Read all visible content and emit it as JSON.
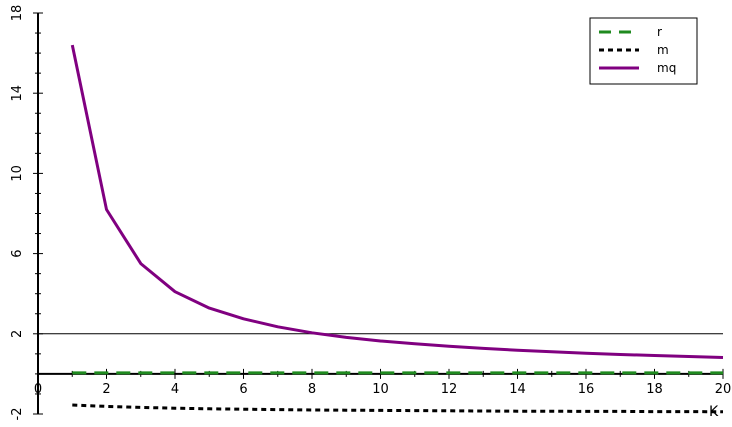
{
  "chart_data": {
    "type": "line",
    "xlabel": "K",
    "ylabel": "",
    "xlim": [
      0,
      20
    ],
    "ylim": [
      -2,
      18
    ],
    "x_ticks": [
      "0",
      "2",
      "4",
      "6",
      "8",
      "10",
      "12",
      "14",
      "16",
      "18",
      "20"
    ],
    "y_ticks": [
      "-2",
      "2",
      "6",
      "10",
      "14",
      "18"
    ],
    "reference_line_y": 2,
    "legend_position": "top-right",
    "series": [
      {
        "name": "r",
        "style": "dashed",
        "color": "#1f8a1f",
        "x": [
          1,
          2,
          3,
          4,
          5,
          6,
          7,
          8,
          9,
          10,
          11,
          12,
          13,
          14,
          15,
          16,
          17,
          18,
          19,
          20
        ],
        "y": [
          0.05,
          0.05,
          0.05,
          0.05,
          0.05,
          0.05,
          0.05,
          0.05,
          0.05,
          0.05,
          0.05,
          0.05,
          0.05,
          0.05,
          0.05,
          0.05,
          0.05,
          0.05,
          0.05,
          0.05
        ]
      },
      {
        "name": "m",
        "style": "dotted",
        "color": "#000000",
        "x": [
          1,
          2,
          3,
          4,
          5,
          6,
          7,
          8,
          9,
          10,
          11,
          12,
          13,
          14,
          15,
          16,
          17,
          18,
          19,
          20
        ],
        "y": [
          -1.55,
          -1.62,
          -1.67,
          -1.71,
          -1.74,
          -1.76,
          -1.78,
          -1.8,
          -1.81,
          -1.82,
          -1.83,
          -1.84,
          -1.85,
          -1.86,
          -1.86,
          -1.87,
          -1.87,
          -1.88,
          -1.88,
          -1.89
        ]
      },
      {
        "name": "mq",
        "style": "solid",
        "color": "#800080",
        "x": [
          1,
          2,
          3,
          4,
          5,
          6,
          7,
          8,
          9,
          10,
          11,
          12,
          13,
          14,
          15,
          16,
          17,
          18,
          19,
          20
        ],
        "y": [
          16.4,
          8.2,
          5.5,
          4.1,
          3.28,
          2.75,
          2.35,
          2.05,
          1.82,
          1.64,
          1.5,
          1.38,
          1.27,
          1.18,
          1.1,
          1.03,
          0.97,
          0.92,
          0.87,
          0.82
        ]
      }
    ]
  }
}
